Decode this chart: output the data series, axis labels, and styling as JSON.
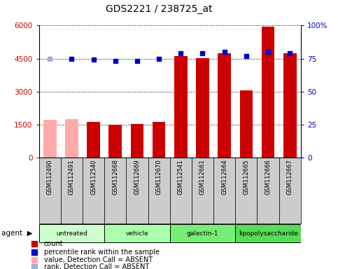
{
  "title": "GDS2221 / 238725_at",
  "samples": [
    "GSM112490",
    "GSM112491",
    "GSM112540",
    "GSM112668",
    "GSM112669",
    "GSM112670",
    "GSM112541",
    "GSM112661",
    "GSM112664",
    "GSM112665",
    "GSM112666",
    "GSM112667"
  ],
  "bar_heights": [
    1700,
    1750,
    1600,
    1500,
    1520,
    1620,
    4600,
    4520,
    4750,
    3050,
    5950,
    4750
  ],
  "bar_absent": [
    true,
    true,
    false,
    false,
    false,
    false,
    false,
    false,
    false,
    false,
    false,
    false
  ],
  "percentile_ranks": [
    75,
    75,
    74,
    73,
    73,
    75,
    79,
    79,
    80,
    77,
    80,
    79
  ],
  "rank_absent": [
    true,
    false,
    false,
    false,
    false,
    false,
    false,
    false,
    false,
    false,
    false,
    false
  ],
  "groups": [
    {
      "label": "untreated",
      "start": 0,
      "end": 3,
      "color": "#ccffcc"
    },
    {
      "label": "vehicle",
      "start": 3,
      "end": 6,
      "color": "#aaffaa"
    },
    {
      "label": "galectin-1",
      "start": 6,
      "end": 9,
      "color": "#77ee77"
    },
    {
      "label": "lipopolysaccharide",
      "start": 9,
      "end": 12,
      "color": "#55dd55"
    }
  ],
  "ylim_left": [
    0,
    6000
  ],
  "ylim_right": [
    0,
    100
  ],
  "yticks_left": [
    0,
    1500,
    3000,
    4500,
    6000
  ],
  "ytick_labels_left": [
    "0",
    "1500",
    "3000",
    "4500",
    "6000"
  ],
  "yticks_right": [
    0,
    25,
    50,
    75,
    100
  ],
  "ytick_labels_right": [
    "0",
    "25",
    "50",
    "75",
    "100%"
  ],
  "bar_color_normal": "#cc0000",
  "bar_color_absent": "#ffaaaa",
  "dot_color_normal": "#0000cc",
  "dot_color_absent": "#aaaadd",
  "xlabel_area_color": "#cccccc",
  "legend_items": [
    {
      "color": "#cc0000",
      "marker": "s",
      "label": "count"
    },
    {
      "color": "#0000cc",
      "marker": "s",
      "label": "percentile rank within the sample"
    },
    {
      "color": "#ffaaaa",
      "marker": "s",
      "label": "value, Detection Call = ABSENT"
    },
    {
      "color": "#aaaadd",
      "marker": "s",
      "label": "rank, Detection Call = ABSENT"
    }
  ]
}
